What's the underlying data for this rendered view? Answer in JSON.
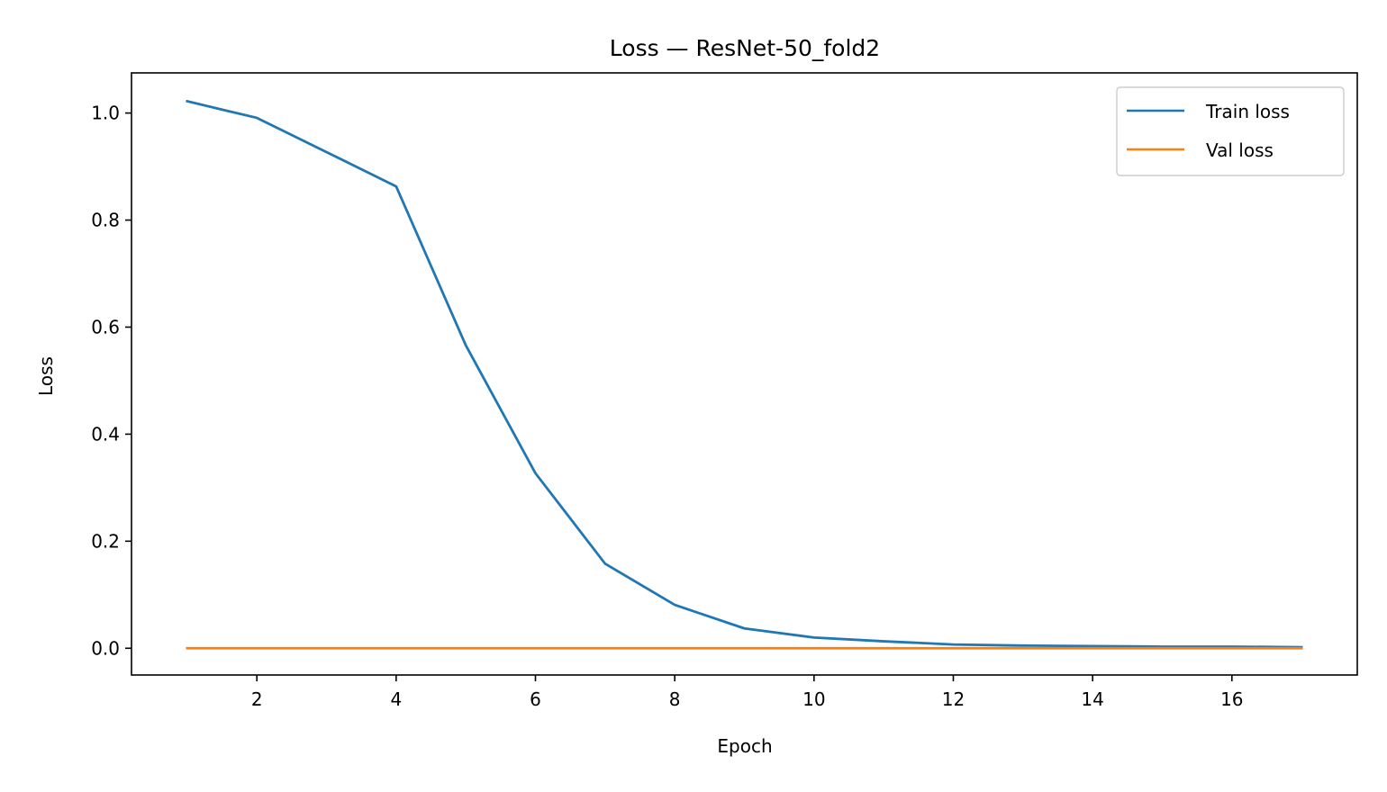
{
  "chart_data": {
    "type": "line",
    "title": "Loss — ResNet-50_fold2",
    "xlabel": "Epoch",
    "ylabel": "Loss",
    "xlim": [
      0.2,
      17.8
    ],
    "ylim": [
      -0.05,
      1.075
    ],
    "xticks": [
      2,
      4,
      6,
      8,
      10,
      12,
      14,
      16
    ],
    "xtick_labels": [
      "2",
      "4",
      "6",
      "8",
      "10",
      "12",
      "14",
      "16"
    ],
    "yticks": [
      0.0,
      0.2,
      0.4,
      0.6,
      0.8,
      1.0
    ],
    "ytick_labels": [
      "0.0",
      "0.2",
      "0.4",
      "0.6",
      "0.8",
      "1.0"
    ],
    "grid": false,
    "legend_position": "top-right",
    "x": [
      1,
      2,
      3,
      4,
      5,
      6,
      7,
      8,
      9,
      10,
      11,
      12,
      13,
      14,
      15,
      16,
      17
    ],
    "series": [
      {
        "name": "Train loss",
        "color": "#1f77b4",
        "values": [
          1.022,
          0.991,
          0.927,
          0.863,
          0.566,
          0.327,
          0.158,
          0.081,
          0.037,
          0.02,
          0.013,
          0.007,
          0.005,
          0.004,
          0.003,
          0.003,
          0.002
        ]
      },
      {
        "name": "Val loss",
        "color": "#ff7f0e",
        "values": [
          0.0,
          0.0,
          0.0,
          0.0,
          0.0,
          0.0,
          0.0,
          0.0,
          0.0,
          0.0,
          0.0,
          0.0,
          0.0,
          0.0,
          0.0,
          0.0,
          0.0
        ]
      }
    ]
  }
}
